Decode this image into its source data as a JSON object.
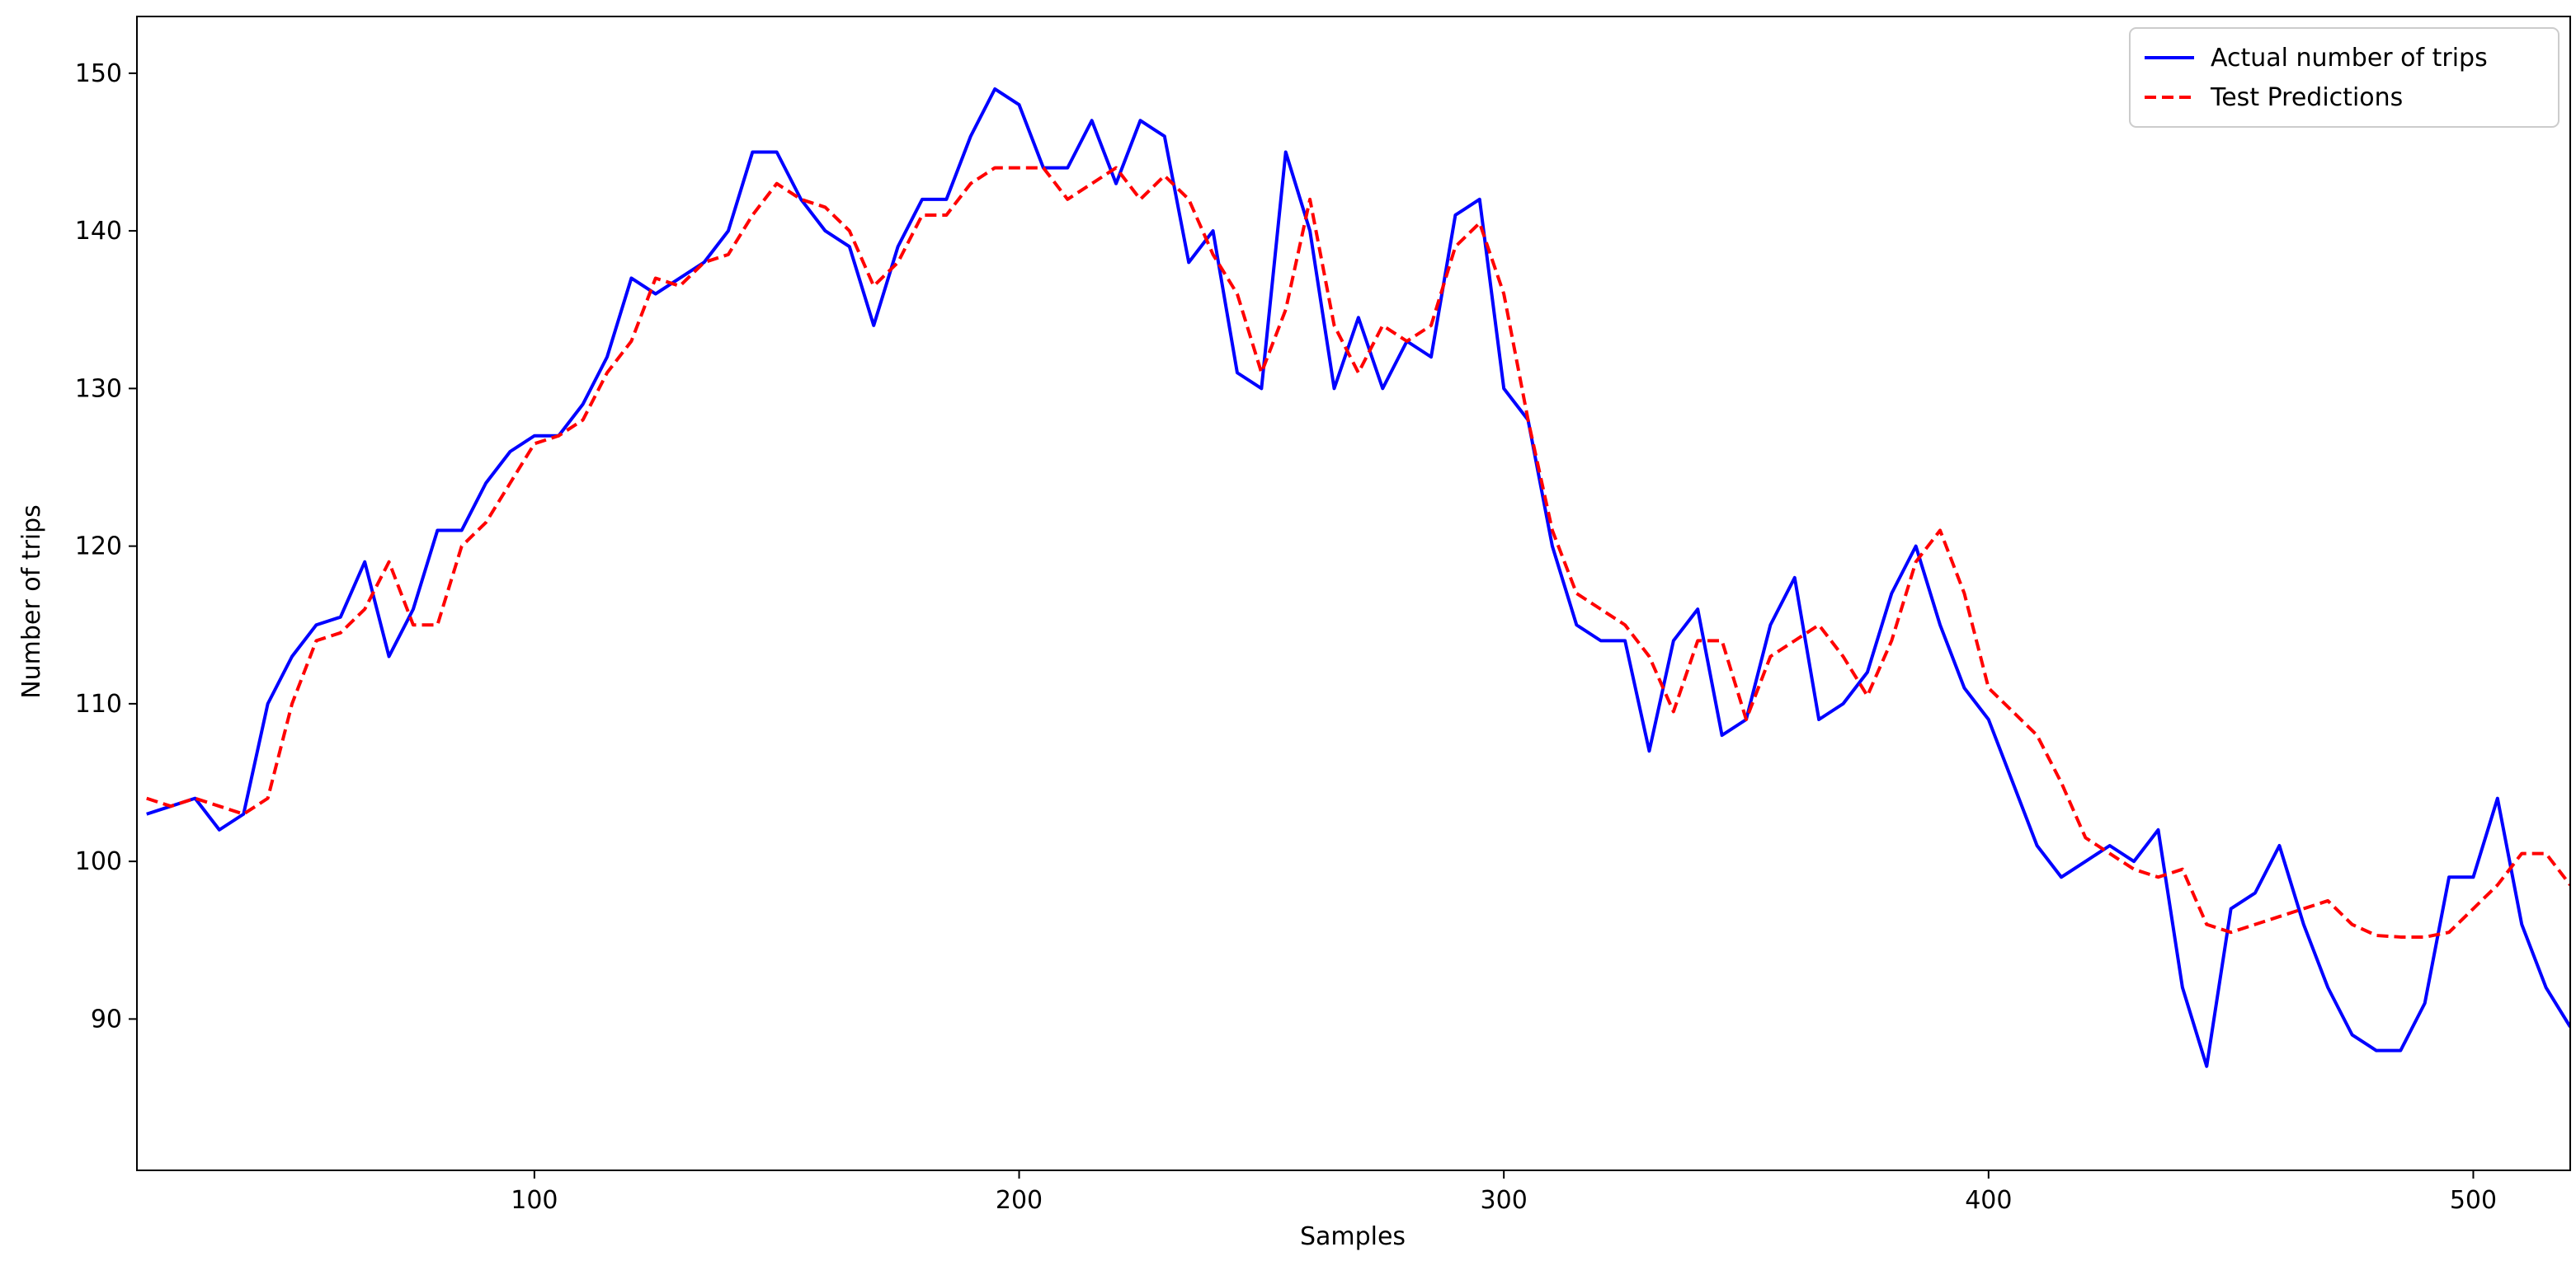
{
  "chart_data": {
    "type": "line",
    "xlabel": "Samples",
    "ylabel": "Number of trips",
    "x": [
      20,
      25,
      30,
      35,
      40,
      45,
      50,
      55,
      60,
      65,
      70,
      75,
      80,
      85,
      90,
      95,
      100,
      105,
      110,
      115,
      120,
      125,
      130,
      135,
      140,
      145,
      150,
      155,
      160,
      165,
      170,
      175,
      180,
      185,
      190,
      195,
      200,
      205,
      210,
      215,
      220,
      225,
      230,
      235,
      240,
      245,
      250,
      255,
      260,
      265,
      270,
      275,
      280,
      285,
      290,
      295,
      300,
      305,
      310,
      315,
      320,
      325,
      330,
      335,
      340,
      345,
      350,
      355,
      360,
      365,
      370,
      375,
      380,
      385,
      390,
      395,
      400,
      405,
      410,
      415,
      420,
      425,
      430,
      435,
      440,
      445,
      450,
      455,
      460,
      465,
      470,
      475,
      480,
      485,
      490,
      495,
      500,
      505,
      510,
      515,
      520
    ],
    "series": [
      {
        "name": "Actual number of trips",
        "color": "#0000ff",
        "dash": false,
        "values": [
          103,
          103.5,
          104,
          102,
          103,
          110,
          113,
          115,
          115.5,
          119,
          113,
          116,
          121,
          121,
          124,
          126,
          127,
          127,
          129,
          132,
          137,
          136,
          137,
          138,
          140,
          145,
          145,
          142,
          140,
          139,
          134,
          139,
          142,
          142,
          146,
          149,
          148,
          144,
          144,
          147,
          143,
          147,
          146,
          138,
          140,
          131,
          130,
          145,
          140,
          130,
          134.5,
          130,
          133,
          132,
          141,
          142,
          130,
          128,
          120,
          115,
          114,
          114,
          107,
          114,
          116,
          108,
          109,
          115,
          118,
          109,
          110,
          112,
          117,
          120,
          115,
          111,
          109,
          105,
          101,
          99,
          100,
          101,
          100,
          102,
          92,
          87,
          97,
          98,
          101,
          96,
          92,
          89,
          88,
          88,
          91,
          99,
          99,
          104,
          96,
          92,
          89.5
        ]
      },
      {
        "name": "Test Predictions",
        "color": "#ff0000",
        "dash": true,
        "values": [
          104,
          103.5,
          104,
          103.5,
          103,
          104,
          110,
          114,
          114.5,
          116,
          119,
          115,
          115,
          120,
          121.5,
          124,
          126.5,
          127,
          128,
          131,
          133,
          137,
          136.5,
          138,
          138.5,
          141,
          143,
          142,
          141.5,
          140,
          136.5,
          138,
          141,
          141,
          143,
          144,
          144,
          144,
          142,
          143,
          144,
          142,
          143.5,
          142,
          138.5,
          136,
          131,
          135,
          142,
          134,
          131,
          134,
          133,
          134,
          139,
          140.5,
          136,
          128,
          121,
          117,
          116,
          115,
          113,
          109.5,
          114,
          114,
          109,
          113,
          114,
          115,
          113,
          110.5,
          114,
          119,
          121,
          117,
          111,
          109.5,
          108,
          105,
          101.5,
          100.5,
          99.5,
          99,
          99.5,
          96,
          95.5,
          96,
          96.5,
          97,
          97.5,
          96,
          95.3,
          95.2,
          95.2,
          95.5,
          97,
          98.5,
          100.5,
          100.5,
          98.5
        ]
      }
    ],
    "xlim": [
      18,
      520
    ],
    "ylim": [
      80.4,
      153.6
    ],
    "xticks": [
      100,
      200,
      300,
      400,
      500
    ],
    "yticks": [
      90,
      100,
      110,
      120,
      130,
      140,
      150
    ],
    "grid": false,
    "legend": "upper right"
  }
}
